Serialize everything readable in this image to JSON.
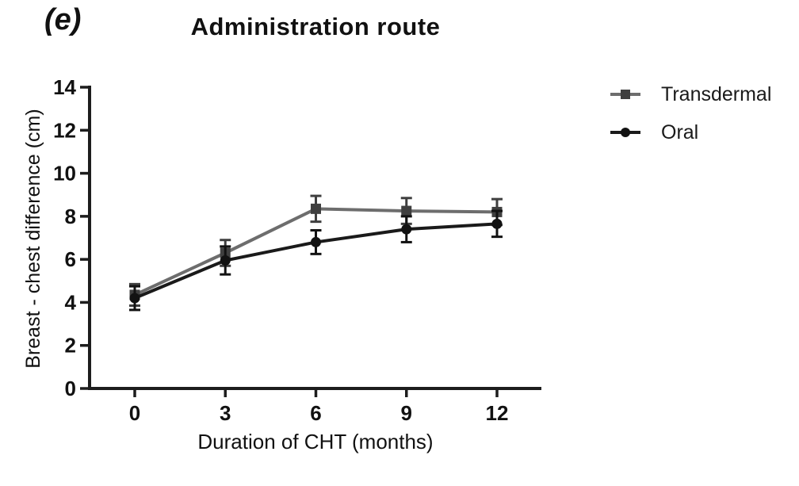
{
  "figure": {
    "panel_label": "(e)",
    "colors": {
      "axis": "#1d1d1d",
      "text": "#111111",
      "transdermal_line": "#6d6d6d",
      "transdermal_marker": "#3f3f3f",
      "oral_line": "#1a1a1a",
      "oral_marker": "#121212"
    }
  },
  "chart_data": {
    "type": "line",
    "title": "Administration route",
    "xlabel": "Duration of CHT (months)",
    "ylabel": "Breast - chest difference (cm)",
    "x": [
      0,
      3,
      6,
      9,
      12
    ],
    "x_ticks": [
      0,
      3,
      6,
      9,
      12
    ],
    "y_ticks": [
      0,
      2,
      4,
      6,
      8,
      10,
      12,
      14
    ],
    "xlim": [
      -1.5,
      13.5
    ],
    "ylim": [
      0,
      14
    ],
    "grid": false,
    "error_bars": true,
    "legend_position": "right-outside",
    "series": [
      {
        "name": "Transdermal",
        "marker": "square",
        "color": "#6d6d6d",
        "marker_color": "#3f3f3f",
        "values": [
          4.35,
          6.3,
          8.35,
          8.25,
          8.2
        ],
        "errors": [
          0.5,
          0.6,
          0.6,
          0.6,
          0.6
        ]
      },
      {
        "name": "Oral",
        "marker": "circle",
        "color": "#1a1a1a",
        "marker_color": "#121212",
        "values": [
          4.2,
          5.95,
          6.8,
          7.4,
          7.65
        ],
        "errors": [
          0.55,
          0.65,
          0.55,
          0.6,
          0.6
        ]
      }
    ]
  }
}
